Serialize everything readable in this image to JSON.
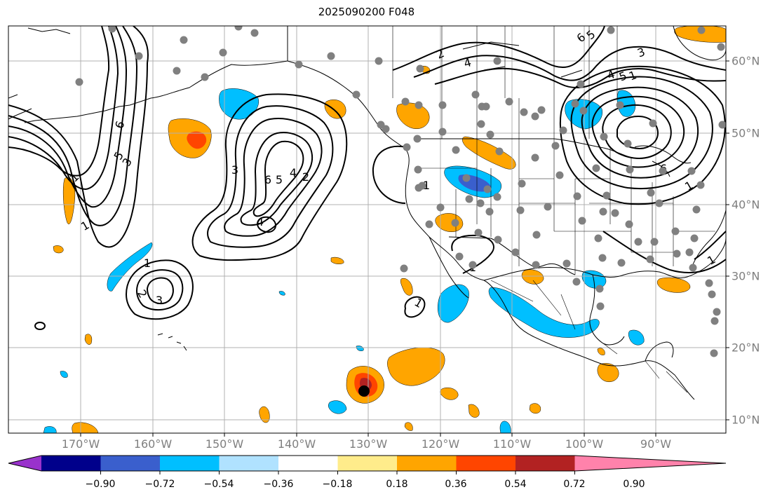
{
  "title": "2025090200 F048",
  "lon_labels": [
    "170°W",
    "160°W",
    "150°W",
    "140°W",
    "130°W",
    "120°W",
    "110°W",
    "100°W",
    "90°W"
  ],
  "lat_labels": [
    "60°N",
    "50°N",
    "40°N",
    "30°N",
    "20°N",
    "10°N"
  ],
  "colorbar": {
    "levels": [
      "−0.90",
      "−0.72",
      "−0.54",
      "−0.36",
      "−0.18",
      "0.18",
      "0.36",
      "0.54",
      "0.72",
      "0.90"
    ],
    "colors": [
      "#9932cc",
      "#00008b",
      "#3a5fcd",
      "#00bfff",
      "#b0e2ff",
      "#ffffff",
      "#ffec8b",
      "#ffa500",
      "#ff4500",
      "#b22222",
      "#ff82ab"
    ]
  },
  "contour_labels": [
    "1",
    "2",
    "3",
    "4",
    "5",
    "6"
  ],
  "colors": {
    "land": "#000000",
    "grid": "#b0b0b0",
    "station": "#808080",
    "storm": "#000000"
  }
}
